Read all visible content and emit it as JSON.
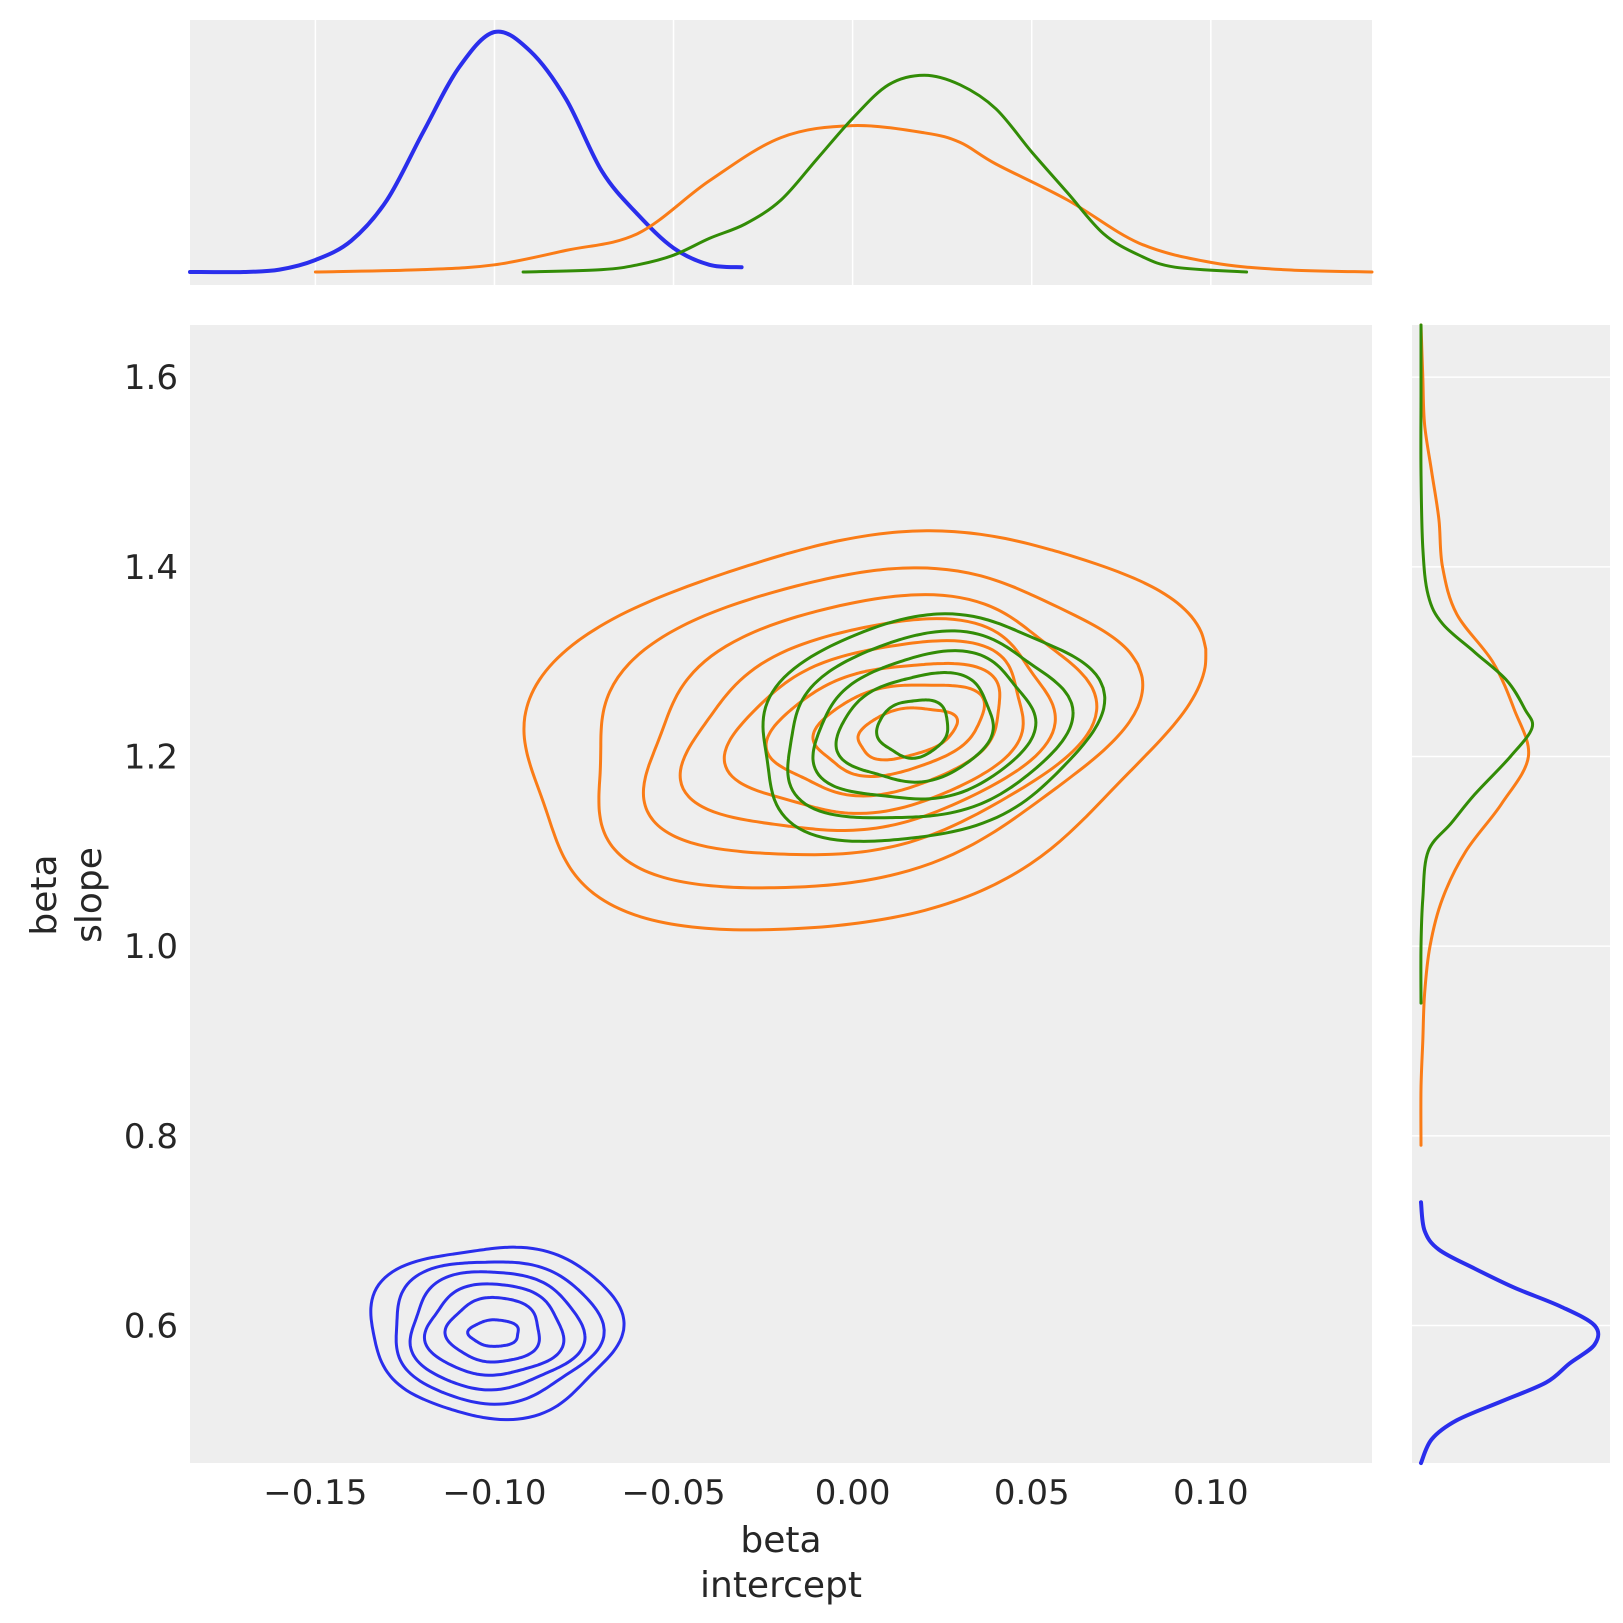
{
  "chart_data": {
    "type": "line",
    "subtype": "joint-kde-with-marginals",
    "title": "",
    "xlabel": [
      "beta",
      "intercept"
    ],
    "ylabel": [
      "beta",
      "slope"
    ],
    "xlim": [
      -0.185,
      0.145
    ],
    "ylim": [
      0.455,
      1.655
    ],
    "x_ticks": [
      -0.15,
      -0.1,
      -0.05,
      0.0,
      0.05,
      0.1
    ],
    "x_tick_labels": [
      "−0.15",
      "−0.10",
      "−0.05",
      "0.00",
      "0.05",
      "0.10"
    ],
    "y_ticks": [
      0.6,
      0.8,
      1.0,
      1.2,
      1.4,
      1.6
    ],
    "y_tick_labels": [
      "0.6",
      "0.8",
      "1.0",
      "1.2",
      "1.4",
      "1.6"
    ],
    "grid": true,
    "legend": "none",
    "series": [
      {
        "color": "#2a2eec",
        "line_width": "thick",
        "center": [
          -0.1,
          0.595
        ],
        "x_marginal": {
          "x": [
            -0.185,
            -0.17,
            -0.16,
            -0.15,
            -0.14,
            -0.13,
            -0.12,
            -0.11,
            -0.1,
            -0.09,
            -0.08,
            -0.07,
            -0.06,
            -0.05,
            -0.04,
            -0.031
          ],
          "density": [
            0.0,
            0.0,
            0.01,
            0.05,
            0.13,
            0.3,
            0.58,
            0.85,
            1.0,
            0.92,
            0.72,
            0.42,
            0.24,
            0.1,
            0.03,
            0.02
          ]
        },
        "y_marginal": {
          "y": [
            0.455,
            0.48,
            0.5,
            0.52,
            0.54,
            0.56,
            0.58,
            0.6,
            0.62,
            0.64,
            0.66,
            0.68,
            0.7,
            0.73
          ],
          "density": [
            0.0,
            0.06,
            0.2,
            0.45,
            0.7,
            0.83,
            0.97,
            0.97,
            0.78,
            0.52,
            0.3,
            0.1,
            0.02,
            0.0
          ]
        },
        "contours": [
          {
            "rx": 0.035,
            "ry": 0.09,
            "dx": 0.0,
            "dy": 0.0
          },
          {
            "rx": 0.029,
            "ry": 0.075,
            "dx": 0.0,
            "dy": 0.0
          },
          {
            "rx": 0.024,
            "ry": 0.062,
            "dx": 0.0,
            "dy": 0.0
          },
          {
            "rx": 0.019,
            "ry": 0.048,
            "dx": 0.0,
            "dy": 0.0
          },
          {
            "rx": 0.013,
            "ry": 0.034,
            "dx": 0.0,
            "dy": 0.0
          },
          {
            "rx": 0.007,
            "ry": 0.014,
            "dx": 0.0,
            "dy": -0.003
          }
        ]
      },
      {
        "color": "#fa7c17",
        "line_width": "normal",
        "center": [
          0.0,
          1.23
        ],
        "x_marginal": {
          "x": [
            -0.15,
            -0.12,
            -0.1,
            -0.08,
            -0.06,
            -0.04,
            -0.02,
            0.0,
            0.02,
            0.03,
            0.04,
            0.06,
            0.08,
            0.1,
            0.12,
            0.145
          ],
          "density": [
            0.0,
            0.01,
            0.03,
            0.09,
            0.16,
            0.38,
            0.56,
            0.61,
            0.58,
            0.54,
            0.45,
            0.3,
            0.12,
            0.04,
            0.01,
            0.0
          ]
        },
        "y_marginal": {
          "y": [
            0.79,
            0.85,
            0.9,
            0.95,
            1.0,
            1.05,
            1.1,
            1.15,
            1.2,
            1.25,
            1.3,
            1.35,
            1.4,
            1.45,
            1.5,
            1.55,
            1.6,
            1.655
          ],
          "density": [
            0.0,
            0.0,
            0.01,
            0.02,
            0.05,
            0.12,
            0.25,
            0.45,
            0.6,
            0.52,
            0.4,
            0.2,
            0.12,
            0.1,
            0.06,
            0.02,
            0.01,
            0.0
          ]
        },
        "contours": [
          {
            "rx": 0.095,
            "ry": 0.2,
            "dx": 0.0,
            "dy": 0.0
          },
          {
            "rx": 0.077,
            "ry": 0.16,
            "dx": 0.0,
            "dy": 0.0
          },
          {
            "rx": 0.063,
            "ry": 0.13,
            "dx": 0.003,
            "dy": 0.0
          },
          {
            "rx": 0.052,
            "ry": 0.105,
            "dx": 0.005,
            "dy": 0.0
          },
          {
            "rx": 0.042,
            "ry": 0.085,
            "dx": 0.008,
            "dy": 0.0
          },
          {
            "rx": 0.033,
            "ry": 0.065,
            "dx": 0.01,
            "dy": 0.0
          },
          {
            "rx": 0.024,
            "ry": 0.045,
            "dx": 0.013,
            "dy": 0.0
          },
          {
            "rx": 0.014,
            "ry": 0.025,
            "dx": 0.015,
            "dy": -0.005
          }
        ]
      },
      {
        "color": "#328c06",
        "line_width": "normal",
        "center": [
          0.02,
          1.23
        ],
        "x_marginal": {
          "x": [
            -0.092,
            -0.07,
            -0.06,
            -0.05,
            -0.04,
            -0.03,
            -0.02,
            -0.01,
            0.0,
            0.01,
            0.02,
            0.03,
            0.04,
            0.05,
            0.06,
            0.07,
            0.08,
            0.09,
            0.11
          ],
          "density": [
            0.0,
            0.01,
            0.03,
            0.07,
            0.14,
            0.2,
            0.3,
            0.47,
            0.64,
            0.78,
            0.82,
            0.78,
            0.68,
            0.5,
            0.33,
            0.16,
            0.07,
            0.02,
            0.0
          ]
        },
        "y_marginal": {
          "y": [
            0.94,
            1.0,
            1.05,
            1.1,
            1.13,
            1.16,
            1.2,
            1.23,
            1.25,
            1.28,
            1.31,
            1.34,
            1.37,
            1.42,
            1.5,
            1.58,
            1.655
          ],
          "density": [
            0.0,
            0.0,
            0.01,
            0.04,
            0.17,
            0.3,
            0.5,
            0.62,
            0.58,
            0.48,
            0.3,
            0.12,
            0.04,
            0.01,
            0.0,
            0.0,
            0.0
          ]
        },
        "contours": [
          {
            "rx": 0.048,
            "ry": 0.115,
            "dx": 0.0,
            "dy": 0.0
          },
          {
            "rx": 0.04,
            "ry": 0.095,
            "dx": 0.0,
            "dy": 0.0
          },
          {
            "rx": 0.031,
            "ry": 0.075,
            "dx": 0.0,
            "dy": 0.0
          },
          {
            "rx": 0.022,
            "ry": 0.055,
            "dx": -0.002,
            "dy": 0.0
          },
          {
            "rx": 0.01,
            "ry": 0.03,
            "dx": -0.003,
            "dy": 0.0
          }
        ]
      }
    ]
  }
}
